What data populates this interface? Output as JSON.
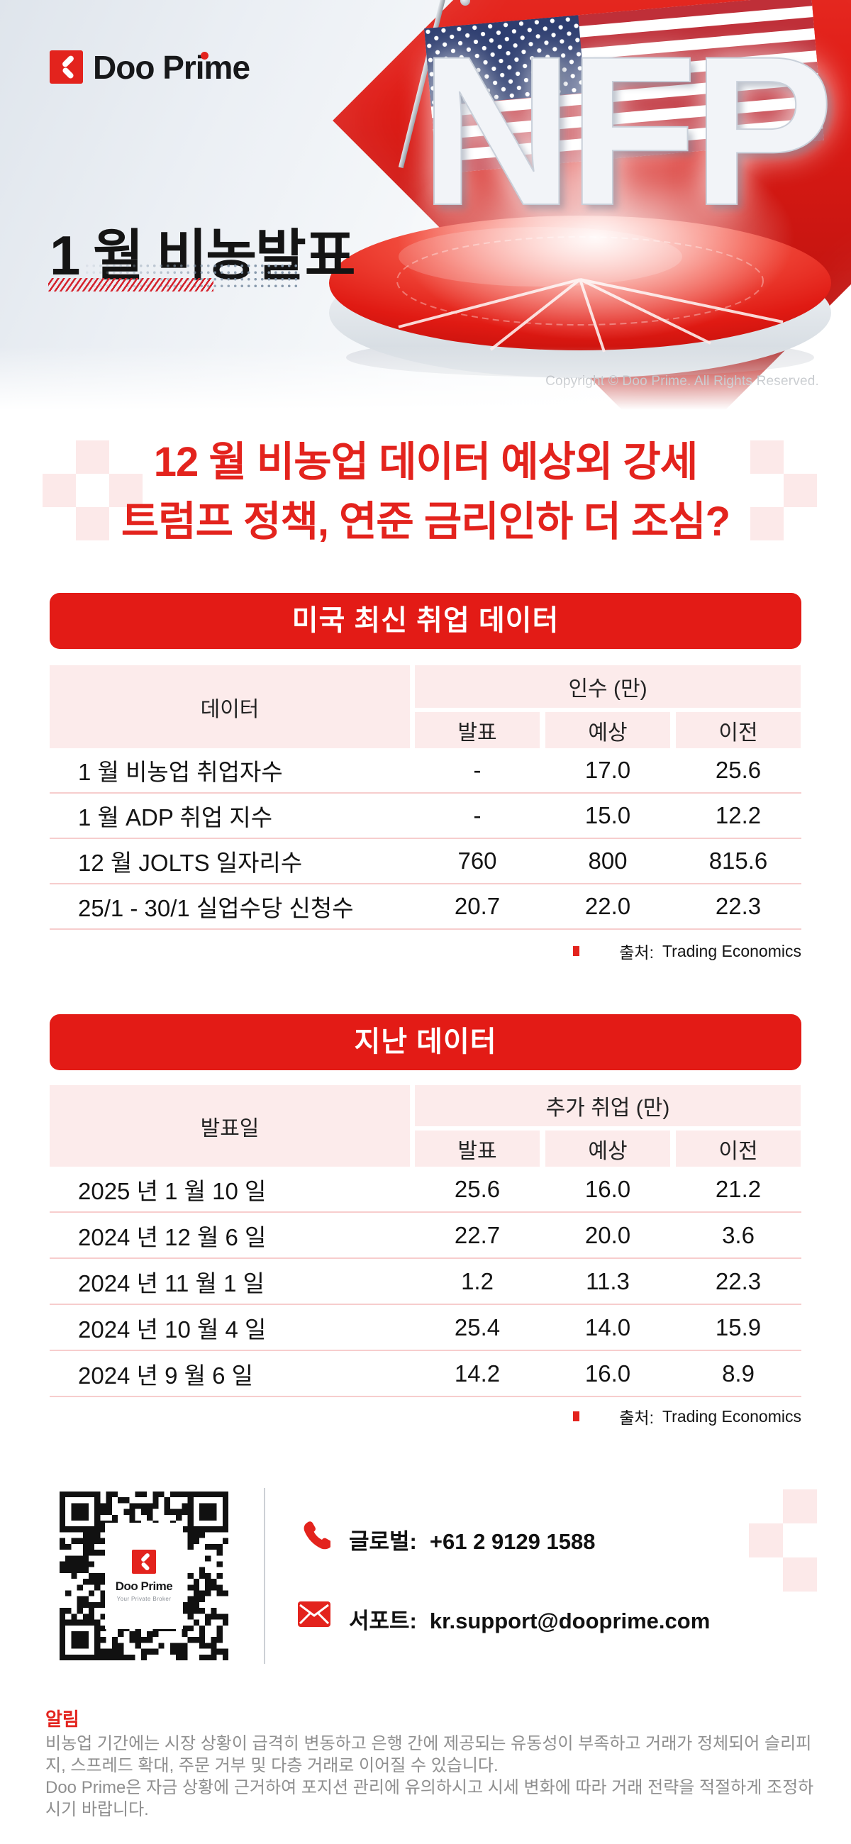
{
  "brand": {
    "name": "Doo Prime",
    "tagline": "Your Private Broker"
  },
  "hero": {
    "title": "1 월 비농발표",
    "nfp": "NFP",
    "copyright": "Copyright © Doo Prime. All Rights Reserved."
  },
  "headline": {
    "line1": "12 월 비농업 데이터 예상외 강세",
    "line2": "트럼프 정책, 연준 금리인하 더 조심?"
  },
  "table1": {
    "banner": "미국 최신 취업 데이터",
    "col_first": "데이터",
    "col_group": "인수 (만)",
    "columns": [
      "발표",
      "예상",
      "이전"
    ],
    "rows": [
      {
        "label": "1 월 비농업 취업자수",
        "values": [
          "-",
          "17.0",
          "25.6"
        ]
      },
      {
        "label": "1 월 ADP 취업 지수",
        "values": [
          "-",
          "15.0",
          "12.2"
        ]
      },
      {
        "label": "12 월 JOLTS 일자리수",
        "values": [
          "760",
          "800",
          "815.6"
        ]
      },
      {
        "label": "25/1 - 30/1 실업수당 신청수",
        "values": [
          "20.7",
          "22.0",
          "22.3"
        ]
      }
    ],
    "source_label": "출처:",
    "source_value": "Trading Economics"
  },
  "table2": {
    "banner": "지난 데이터",
    "col_first": "발표일",
    "col_group": "추가 취업 (만)",
    "columns": [
      "발표",
      "예상",
      "이전"
    ],
    "rows": [
      {
        "label": "2025 년 1 월 10 일",
        "values": [
          "25.6",
          "16.0",
          "21.2"
        ]
      },
      {
        "label": "2024 년 12 월 6 일",
        "values": [
          "22.7",
          "20.0",
          "3.6"
        ]
      },
      {
        "label": "2024 년 11 월 1 일",
        "values": [
          "1.2",
          "11.3",
          "22.3"
        ]
      },
      {
        "label": "2024 년 10 월 4 일",
        "values": [
          "25.4",
          "14.0",
          "15.9"
        ]
      },
      {
        "label": "2024 년 9 월 6 일",
        "values": [
          "14.2",
          "16.0",
          "8.9"
        ]
      }
    ],
    "source_label": "출처:",
    "source_value": "Trading Economics"
  },
  "footer": {
    "phone_label": "글로벌:",
    "phone_value": "+61 2 9129 1588",
    "email_label": "서포트:",
    "email_value": "kr.support@dooprime.com"
  },
  "notice": {
    "title": "알림",
    "para1": "비농업 기간에는 시장 상황이 급격히 변동하고 은행 간에 제공되는 유동성이 부족하고 거래가 정체되어 슬리피지, 스프레드 확대, 주문 거부 및 다층 거래로 이어질 수 있습니다.",
    "para2": "Doo Prime은 자금 상황에 근거하여 포지션 관리에 유의하시고 시세 변화에 따라 거래 전략을 적절하게 조정하시기 바랍니다."
  },
  "colors": {
    "banner_red": "#e31b16",
    "accent_red": "#e3231d",
    "cell_pink": "#fcebeb",
    "divider_pink": "#f7cdcd"
  }
}
